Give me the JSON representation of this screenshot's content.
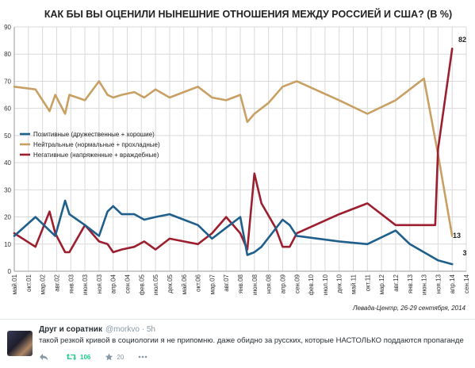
{
  "chart_data": {
    "type": "line",
    "title": "КАК БЫ ВЫ ОЦЕНИЛИ  НЫНЕШНИЕ ОТНОШЕНИЯ МЕЖДУ РОССИЕЙ И США? (В %)",
    "ylim": [
      0,
      90
    ],
    "yticks": [
      "0",
      "10",
      "20",
      "30",
      "40",
      "50",
      "60",
      "70",
      "80",
      "90"
    ],
    "categories": [
      "май.01",
      "окт.01",
      "мар.02",
      "авг.02",
      "янв.03",
      "июн.03",
      "ноя.03",
      "апр.04",
      "сен.04",
      "фев.05",
      "июл.05",
      "дек.05",
      "май.06",
      "окт.06",
      "мар.07",
      "авг.07",
      "янв.08",
      "июн.08",
      "ноя.08",
      "апр.09",
      "сен.09",
      "фев.10",
      "июл.10",
      "дек.10",
      "май.11",
      "окт.11",
      "мар.12",
      "авг.12",
      "янв.13",
      "июн.13",
      "ноя.13",
      "апр.14",
      "сен.14"
    ],
    "grid": true,
    "legend_position": "center-left",
    "credit": "Левада-Центр, 26-29 сентября, 2014",
    "end_labels": [
      "82",
      "13",
      "3"
    ],
    "series": [
      {
        "name": "Позитивные  (дружественные + хорошие)",
        "color": "#1f5f8b",
        "points": [
          [
            0,
            13
          ],
          [
            1.5,
            20
          ],
          [
            2.5,
            15
          ],
          [
            2.9,
            13
          ],
          [
            3.6,
            26
          ],
          [
            3.9,
            21
          ],
          [
            5,
            17
          ],
          [
            6,
            13
          ],
          [
            6.6,
            22
          ],
          [
            7,
            24
          ],
          [
            7.6,
            21
          ],
          [
            8.5,
            21
          ],
          [
            9.2,
            19
          ],
          [
            10,
            20
          ],
          [
            11,
            21
          ],
          [
            12,
            19
          ],
          [
            13,
            17
          ],
          [
            14,
            12
          ],
          [
            15,
            16
          ],
          [
            16,
            20
          ],
          [
            16.5,
            6
          ],
          [
            17,
            7
          ],
          [
            17.5,
            9
          ],
          [
            19,
            19
          ],
          [
            19.5,
            17
          ],
          [
            20,
            13
          ],
          [
            23,
            11
          ],
          [
            25,
            10
          ],
          [
            27,
            15
          ],
          [
            28,
            10
          ],
          [
            29,
            7
          ],
          [
            30,
            4
          ],
          [
            31,
            2.6
          ]
        ]
      },
      {
        "name": "Нейтральные (нормальные + прохладные)",
        "color": "#c8a064",
        "points": [
          [
            0,
            68
          ],
          [
            1.5,
            67
          ],
          [
            2.5,
            59
          ],
          [
            2.9,
            65
          ],
          [
            3.6,
            58
          ],
          [
            3.9,
            65
          ],
          [
            5,
            63
          ],
          [
            6,
            70
          ],
          [
            6.6,
            65
          ],
          [
            7,
            64
          ],
          [
            7.6,
            65
          ],
          [
            8.5,
            66
          ],
          [
            9.2,
            64
          ],
          [
            10,
            67
          ],
          [
            11,
            64
          ],
          [
            12,
            66
          ],
          [
            13,
            68
          ],
          [
            14,
            64
          ],
          [
            15,
            63
          ],
          [
            16,
            65
          ],
          [
            16.5,
            55
          ],
          [
            17,
            58
          ],
          [
            18,
            62
          ],
          [
            19,
            68
          ],
          [
            20,
            70
          ],
          [
            23,
            63
          ],
          [
            25,
            58
          ],
          [
            27,
            63
          ],
          [
            28,
            67
          ],
          [
            29,
            71
          ],
          [
            30,
            43
          ],
          [
            31,
            13
          ]
        ]
      },
      {
        "name": "Негативные  (напряженные + враждебные)",
        "color": "#9c1f30",
        "points": [
          [
            0,
            14
          ],
          [
            1.5,
            9
          ],
          [
            2.5,
            22
          ],
          [
            2.9,
            14
          ],
          [
            3.6,
            7
          ],
          [
            3.9,
            7
          ],
          [
            5,
            17
          ],
          [
            6,
            11
          ],
          [
            6.6,
            10
          ],
          [
            7,
            7
          ],
          [
            7.6,
            8
          ],
          [
            8.5,
            9
          ],
          [
            9.2,
            11
          ],
          [
            10,
            8
          ],
          [
            11,
            12
          ],
          [
            12,
            11
          ],
          [
            13,
            10
          ],
          [
            14,
            14
          ],
          [
            15,
            20
          ],
          [
            16,
            14
          ],
          [
            16.5,
            8
          ],
          [
            17,
            36
          ],
          [
            17.5,
            25
          ],
          [
            18.5,
            16
          ],
          [
            19,
            9
          ],
          [
            19.5,
            9
          ],
          [
            20,
            14
          ],
          [
            23,
            21
          ],
          [
            25,
            25
          ],
          [
            27,
            17
          ],
          [
            28,
            17
          ],
          [
            29,
            17
          ],
          [
            29.8,
            17
          ],
          [
            30,
            45
          ],
          [
            31,
            82
          ]
        ]
      }
    ]
  },
  "tweet": {
    "author": "Друг и соратник",
    "handle": "@morkvo",
    "sep": "·",
    "time": "5h",
    "text": "такой резкой кривой в социологии я не припомню. даже обидно за русских, которые НАСТОЛЬКО поддаются пропаганде",
    "retweets": "106",
    "favorites": "20",
    "icons": [
      "reply-icon",
      "retweet-icon",
      "favorite-icon",
      "more-icon"
    ],
    "retweet_color": "#19cf86"
  }
}
